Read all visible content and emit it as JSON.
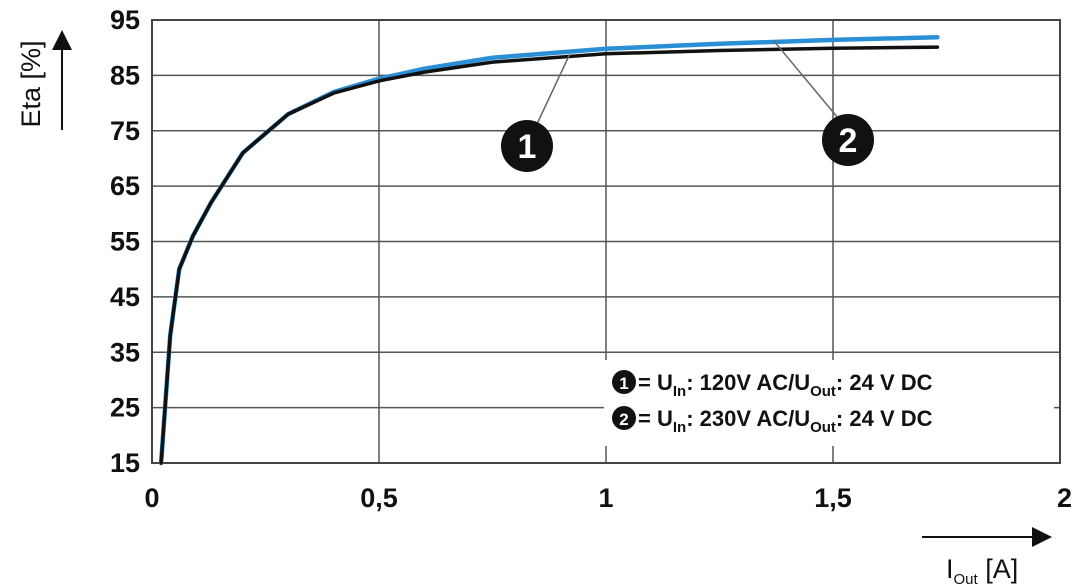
{
  "chart_data": {
    "type": "line",
    "xlabel": {
      "main": "I",
      "sub": "Out",
      "unit": " [A]"
    },
    "ylabel": "Eta [%]",
    "xlim": [
      0,
      2
    ],
    "ylim": [
      15,
      95
    ],
    "x_ticks": [
      "0",
      "0,5",
      "1",
      "1,5",
      "2"
    ],
    "y_ticks": [
      "95",
      "85",
      "75",
      "65",
      "55",
      "45",
      "35",
      "25",
      "15"
    ],
    "grid": true,
    "series": [
      {
        "marker": "1",
        "color": "#111111",
        "points": [
          [
            0.02,
            15
          ],
          [
            0.04,
            38
          ],
          [
            0.06,
            50
          ],
          [
            0.09,
            56
          ],
          [
            0.13,
            62
          ],
          [
            0.2,
            71
          ],
          [
            0.3,
            78
          ],
          [
            0.4,
            81.8
          ],
          [
            0.5,
            84
          ],
          [
            0.6,
            85.6
          ],
          [
            0.75,
            87.4
          ],
          [
            1.0,
            88.9
          ],
          [
            1.25,
            89.5
          ],
          [
            1.5,
            89.9
          ],
          [
            1.73,
            90.1
          ]
        ]
      },
      {
        "marker": "2",
        "color": "#2b8fd6",
        "points": [
          [
            0.02,
            15
          ],
          [
            0.04,
            38
          ],
          [
            0.06,
            50
          ],
          [
            0.09,
            56
          ],
          [
            0.13,
            62
          ],
          [
            0.2,
            71
          ],
          [
            0.3,
            78
          ],
          [
            0.4,
            82
          ],
          [
            0.5,
            84.4
          ],
          [
            0.6,
            86.2
          ],
          [
            0.75,
            88.2
          ],
          [
            1.0,
            89.8
          ],
          [
            1.25,
            90.7
          ],
          [
            1.5,
            91.4
          ],
          [
            1.73,
            91.9
          ]
        ]
      }
    ],
    "callouts": [
      {
        "label": "1",
        "x": 0.92,
        "y": 88.8
      },
      {
        "label": "2",
        "x": 1.37,
        "y": 91.2
      }
    ],
    "legend": {
      "position": "bottom-right",
      "entries": [
        {
          "marker": "1",
          "parts": [
            "= U",
            "In",
            ": 120V AC/U",
            "Out",
            ": 24 V DC"
          ]
        },
        {
          "marker": "2",
          "parts": [
            "= U",
            "In",
            ": 230V AC/U",
            "Out",
            ": 24 V DC"
          ]
        }
      ]
    }
  }
}
